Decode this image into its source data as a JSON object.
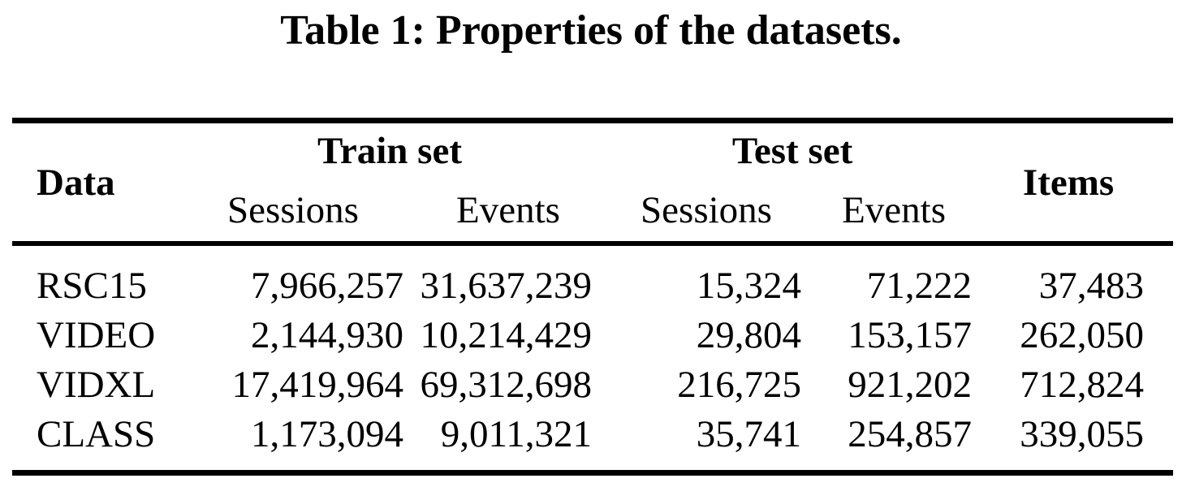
{
  "page": {
    "title": "Table 1: Properties of the datasets."
  },
  "table": {
    "header": {
      "data": "Data",
      "train_set": "Train set",
      "test_set": "Test set",
      "items": "Items",
      "train_sessions": "Sessions",
      "train_events": "Events",
      "test_sessions": "Sessions",
      "test_events": "Events"
    },
    "rows": [
      {
        "data": "RSC15",
        "train_sessions": "7,966,257",
        "train_events": "31,637,239",
        "test_sessions": "15,324",
        "test_events": "71,222",
        "items": "37,483"
      },
      {
        "data": "VIDEO",
        "train_sessions": "2,144,930",
        "train_events": "10,214,429",
        "test_sessions": "29,804",
        "test_events": "153,157",
        "items": "262,050"
      },
      {
        "data": "VIDXL",
        "train_sessions": "17,419,964",
        "train_events": "69,312,698",
        "test_sessions": "216,725",
        "test_events": "921,202",
        "items": "712,824"
      },
      {
        "data": "CLASS",
        "train_sessions": "1,173,094",
        "train_events": "9,011,321",
        "test_sessions": "35,741",
        "test_events": "254,857",
        "items": "339,055"
      }
    ]
  },
  "colors": {
    "text": "#000000",
    "background": "#ffffff",
    "rule": "#000000"
  },
  "chart_data": {
    "type": "table",
    "title": "Table 1: Properties of the datasets.",
    "column_groups": [
      {
        "label": "Data",
        "span": 1
      },
      {
        "label": "Train set",
        "span": 2
      },
      {
        "label": "Test set",
        "span": 2
      },
      {
        "label": "Items",
        "span": 1
      }
    ],
    "columns": [
      "Data",
      "Train set Sessions",
      "Train set Events",
      "Test set Sessions",
      "Test set Events",
      "Items"
    ],
    "rows": [
      [
        "RSC15",
        7966257,
        31637239,
        15324,
        71222,
        37483
      ],
      [
        "VIDEO",
        2144930,
        10214429,
        29804,
        153157,
        262050
      ],
      [
        "VIDXL",
        17419964,
        69312698,
        216725,
        921202,
        712824
      ],
      [
        "CLASS",
        1173094,
        9011321,
        35741,
        254857,
        339055
      ]
    ]
  }
}
